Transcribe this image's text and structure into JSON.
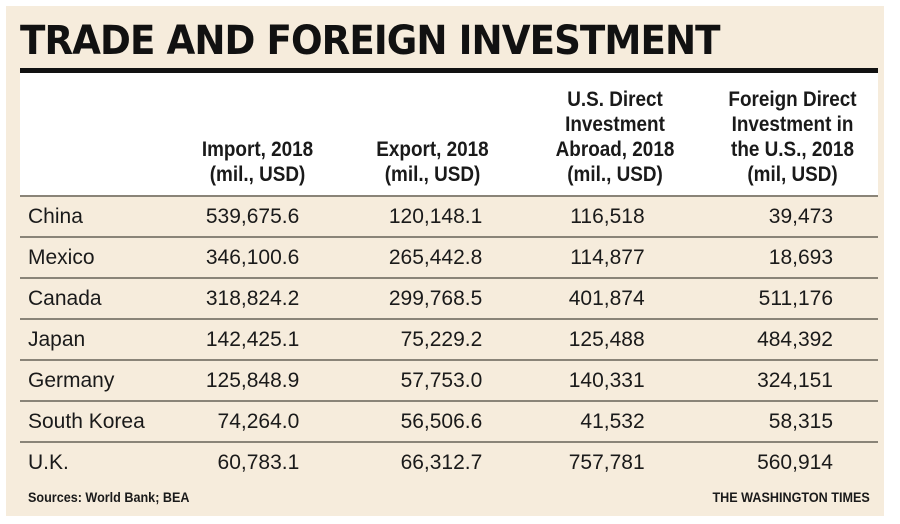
{
  "title": "TRADE AND FOREIGN INVESTMENT",
  "chart_data": {
    "type": "table",
    "title": "TRADE AND FOREIGN INVESTMENT",
    "columns": [
      "Import, 2018 (mil., USD)",
      "Export, 2018 (mil., USD)",
      "U.S. Direct Investment Abroad, 2018 (mil., USD)",
      "Foreign Direct Investment in the U.S., 2018 (mil, USD)"
    ],
    "headers": [
      [
        "Import, 2018",
        "(mil., USD)"
      ],
      [
        "Export, 2018",
        "(mil., USD)"
      ],
      [
        "U.S. Direct",
        "Investment",
        "Abroad, 2018",
        "(mil., USD)"
      ],
      [
        "Foreign Direct",
        "Investment in",
        "the U.S., 2018",
        "(mil, USD)"
      ]
    ],
    "rows": [
      {
        "country": "China",
        "values": [
          "539,675.6",
          "120,148.1",
          "116,518",
          "39,473"
        ]
      },
      {
        "country": "Mexico",
        "values": [
          "346,100.6",
          "265,442.8",
          "114,877",
          "18,693"
        ]
      },
      {
        "country": "Canada",
        "values": [
          "318,824.2",
          "299,768.5",
          "401,874",
          "511,176"
        ]
      },
      {
        "country": "Japan",
        "values": [
          "142,425.1",
          "75,229.2",
          "125,488",
          "484,392"
        ]
      },
      {
        "country": "Germany",
        "values": [
          "125,848.9",
          "57,753.0",
          "140,331",
          "324,151"
        ]
      },
      {
        "country": "South Korea",
        "values": [
          "74,264.0",
          "56,506.6",
          "41,532",
          "58,315"
        ]
      },
      {
        "country": "U.K.",
        "values": [
          "60,783.1",
          "66,312.7",
          "757,781",
          "560,914"
        ]
      }
    ]
  },
  "footer": {
    "source": "Sources: World Bank; BEA",
    "brand": "THE WASHINGTON TIMES"
  }
}
